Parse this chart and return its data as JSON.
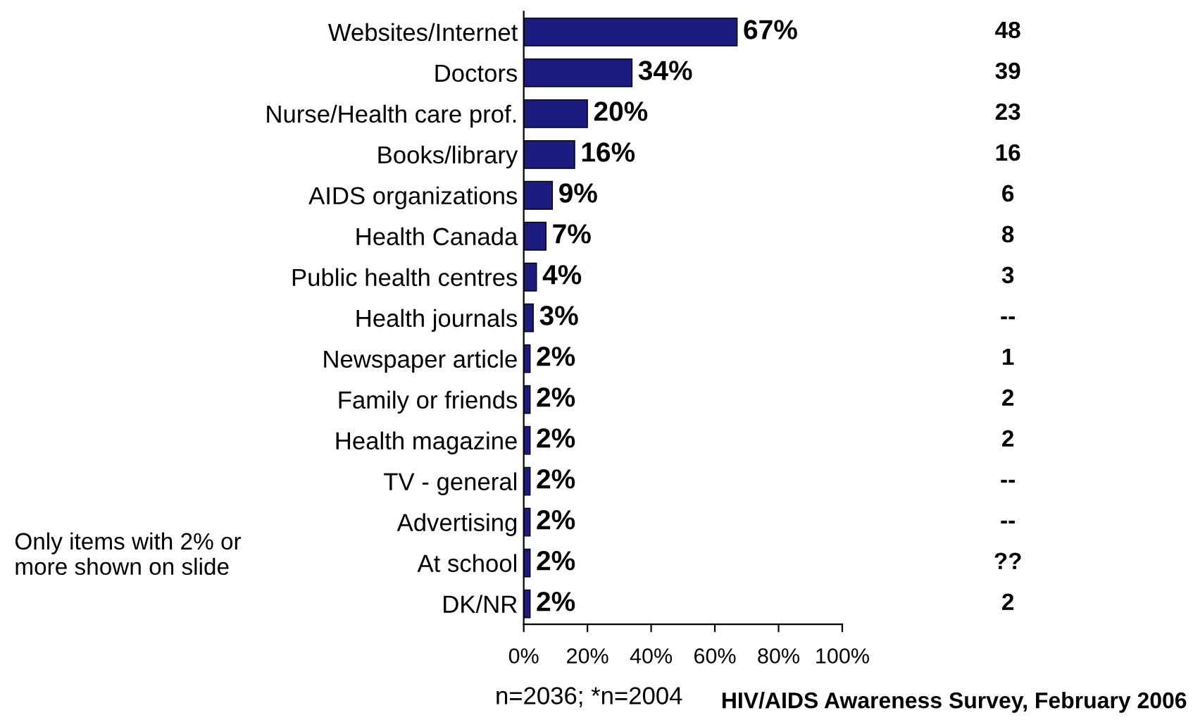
{
  "chart_data": {
    "type": "bar",
    "orientation": "horizontal",
    "categories": [
      "Websites/Internet",
      "Doctors",
      "Nurse/Health care prof.",
      "Books/library",
      "AIDS organizations",
      "Health Canada",
      "Public health centres",
      "Health journals",
      "Newspaper article",
      "Family or friends",
      "Health magazine",
      "TV - general",
      "Advertising",
      "At school",
      "DK/NR"
    ],
    "values": [
      67,
      34,
      20,
      16,
      9,
      7,
      4,
      3,
      2,
      2,
      2,
      2,
      2,
      2,
      2
    ],
    "value_labels": [
      "67%",
      "34%",
      "20%",
      "16%",
      "9%",
      "7%",
      "4%",
      "3%",
      "2%",
      "2%",
      "2%",
      "2%",
      "2%",
      "2%",
      "2%"
    ],
    "color": "#1c1c80",
    "xlim": [
      0,
      100
    ],
    "xticks": [
      {
        "value": 0,
        "label": "0%"
      },
      {
        "value": 20,
        "label": "20%"
      },
      {
        "value": 40,
        "label": "40%"
      },
      {
        "value": 60,
        "label": "60%"
      },
      {
        "value": 80,
        "label": "80%"
      },
      {
        "value": 100,
        "label": "100%"
      }
    ],
    "grid": false,
    "legend": false,
    "annotations": [
      "48",
      "39",
      "23",
      "16",
      "6",
      "8",
      "3",
      "--",
      "1",
      "2",
      "2",
      "--",
      "--",
      "??",
      "2",
      "Only items with 2% or\nmore shown on slide",
      "n=2036; *n=2004",
      "HIV/AIDS Awareness Survey, February 2006"
    ]
  }
}
